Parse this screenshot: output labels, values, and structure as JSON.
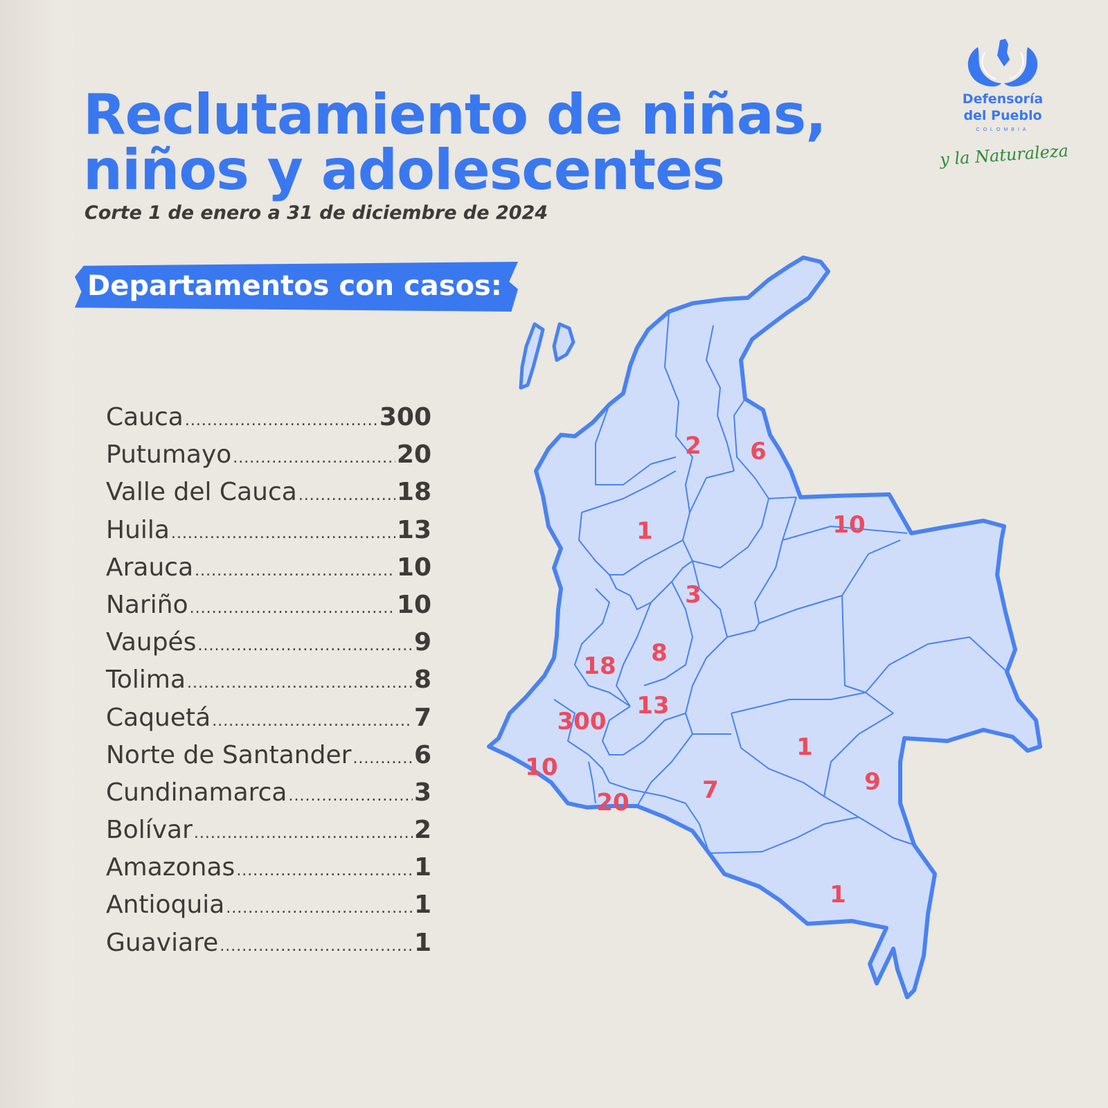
{
  "title": {
    "line1": "Reclutamiento de niñas,",
    "line2": "niños y adolescentes"
  },
  "subtitle": "Corte 1 de enero a 31 de diciembre de 2024",
  "banner": "Departamentos con casos:",
  "departments": [
    {
      "name": "Cauca",
      "value": "300"
    },
    {
      "name": "Putumayo",
      "value": "20"
    },
    {
      "name": "Valle del Cauca",
      "value": "18"
    },
    {
      "name": "Huila",
      "value": "13"
    },
    {
      "name": "Arauca",
      "value": "10"
    },
    {
      "name": "Nariño",
      "value": "10"
    },
    {
      "name": "Vaupés",
      "value": "9"
    },
    {
      "name": "Tolima",
      "value": "8"
    },
    {
      "name": "Caquetá",
      "value": "7"
    },
    {
      "name": "Norte de Santander",
      "value": "6"
    },
    {
      "name": "Cundinamarca",
      "value": "3"
    },
    {
      "name": "Bolívar",
      "value": "2"
    },
    {
      "name": "Amazonas",
      "value": "1"
    },
    {
      "name": "Antioquia",
      "value": "1"
    },
    {
      "name": "Guaviare",
      "value": "1"
    }
  ],
  "map_labels": {
    "bolivar": "2",
    "norte_de_santander": "6",
    "arauca": "10",
    "antioquia": "1",
    "cundinamarca": "3",
    "tolima": "8",
    "valle_del_cauca": "18",
    "huila": "13",
    "cauca": "300",
    "narino": "10",
    "putumayo": "20",
    "caqueta": "7",
    "guaviare": "1",
    "vaupes": "9",
    "amazonas": "1"
  },
  "logo": {
    "org_line1": "Defensoría",
    "org_line2": "del Pueblo",
    "country": "COLOMBIA",
    "motto": "y la Naturaleza"
  },
  "colors": {
    "accent": "#3a78f0",
    "map_fill": "#cfddfb",
    "map_stroke": "#4a82f0",
    "label": "#ec4b5f",
    "text": "#3d3a37",
    "background": "#ebe7e1"
  }
}
